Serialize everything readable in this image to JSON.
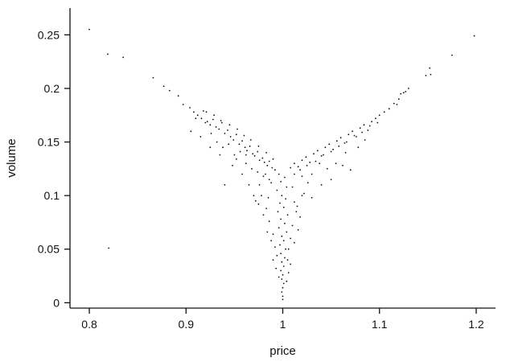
{
  "chart_data": {
    "type": "scatter",
    "title": "",
    "xlabel": "price",
    "ylabel": "volume",
    "xlim": [
      0.78,
      1.22
    ],
    "ylim": [
      -0.005,
      0.275
    ],
    "x_ticks": [
      0.8,
      0.9,
      1.0,
      1.1,
      1.2
    ],
    "x_tick_labels": [
      "0.8",
      "0.9",
      "1",
      "1.1",
      "1.2"
    ],
    "y_ticks": [
      0,
      0.05,
      0.1,
      0.15,
      0.2,
      0.25
    ],
    "y_tick_labels": [
      "0",
      "0.05",
      "0.1",
      "0.15",
      "0.2",
      "0.25"
    ],
    "grid": false,
    "legend": "none",
    "point_color": "#111111",
    "points": [
      [
        0.8,
        0.255
      ],
      [
        0.819,
        0.232
      ],
      [
        0.835,
        0.229
      ],
      [
        0.866,
        0.21
      ],
      [
        0.82,
        0.051
      ],
      [
        0.877,
        0.202
      ],
      [
        0.883,
        0.198
      ],
      [
        0.892,
        0.193
      ],
      [
        0.897,
        0.185
      ],
      [
        0.904,
        0.182
      ],
      [
        0.908,
        0.178
      ],
      [
        0.912,
        0.175
      ],
      [
        0.916,
        0.172
      ],
      [
        0.918,
        0.179
      ],
      [
        0.922,
        0.169
      ],
      [
        0.925,
        0.166
      ],
      [
        0.928,
        0.171
      ],
      [
        0.931,
        0.164
      ],
      [
        0.934,
        0.162
      ],
      [
        0.937,
        0.168
      ],
      [
        0.94,
        0.158
      ],
      [
        0.943,
        0.161
      ],
      [
        0.946,
        0.155
      ],
      [
        0.949,
        0.152
      ],
      [
        0.952,
        0.157
      ],
      [
        0.955,
        0.148
      ],
      [
        0.958,
        0.151
      ],
      [
        0.961,
        0.145
      ],
      [
        0.963,
        0.142
      ],
      [
        0.966,
        0.146
      ],
      [
        0.969,
        0.139
      ],
      [
        0.971,
        0.137
      ],
      [
        0.974,
        0.141
      ],
      [
        0.976,
        0.133
      ],
      [
        0.979,
        0.135
      ],
      [
        0.981,
        0.131
      ],
      [
        0.984,
        0.128
      ],
      [
        0.986,
        0.132
      ],
      [
        0.989,
        0.126
      ],
      [
        0.992,
        0.124
      ],
      [
        0.905,
        0.16
      ],
      [
        0.91,
        0.172
      ],
      [
        0.915,
        0.155
      ],
      [
        0.92,
        0.168
      ],
      [
        0.926,
        0.158
      ],
      [
        0.932,
        0.15
      ],
      [
        0.938,
        0.145
      ],
      [
        0.944,
        0.148
      ],
      [
        0.95,
        0.138
      ],
      [
        0.956,
        0.141
      ],
      [
        0.962,
        0.13
      ],
      [
        0.968,
        0.125
      ],
      [
        0.974,
        0.122
      ],
      [
        0.98,
        0.118
      ],
      [
        0.986,
        0.115
      ],
      [
        0.921,
        0.178
      ],
      [
        0.929,
        0.175
      ],
      [
        0.936,
        0.17
      ],
      [
        0.945,
        0.166
      ],
      [
        0.953,
        0.162
      ],
      [
        0.96,
        0.156
      ],
      [
        0.967,
        0.152
      ],
      [
        0.975,
        0.146
      ],
      [
        0.983,
        0.14
      ],
      [
        0.99,
        0.134
      ],
      [
        0.925,
        0.145
      ],
      [
        0.935,
        0.138
      ],
      [
        0.948,
        0.128
      ],
      [
        0.958,
        0.12
      ],
      [
        0.965,
        0.11
      ],
      [
        0.97,
        0.1
      ],
      [
        0.975,
        0.092
      ],
      [
        0.94,
        0.11
      ],
      [
        0.952,
        0.134
      ],
      [
        0.962,
        0.138
      ],
      [
        1.008,
        0.126
      ],
      [
        1.012,
        0.13
      ],
      [
        1.016,
        0.127
      ],
      [
        1.02,
        0.133
      ],
      [
        1.024,
        0.136
      ],
      [
        1.028,
        0.131
      ],
      [
        1.032,
        0.139
      ],
      [
        1.036,
        0.142
      ],
      [
        1.04,
        0.137
      ],
      [
        1.044,
        0.145
      ],
      [
        1.048,
        0.148
      ],
      [
        1.052,
        0.143
      ],
      [
        1.056,
        0.151
      ],
      [
        1.06,
        0.154
      ],
      [
        1.064,
        0.149
      ],
      [
        1.068,
        0.157
      ],
      [
        1.072,
        0.16
      ],
      [
        1.076,
        0.155
      ],
      [
        1.08,
        0.163
      ],
      [
        1.084,
        0.166
      ],
      [
        1.088,
        0.161
      ],
      [
        1.092,
        0.169
      ],
      [
        1.096,
        0.172
      ],
      [
        1.1,
        0.175
      ],
      [
        1.105,
        0.178
      ],
      [
        1.11,
        0.181
      ],
      [
        1.115,
        0.186
      ],
      [
        1.12,
        0.19
      ],
      [
        1.125,
        0.196
      ],
      [
        1.13,
        0.2
      ],
      [
        1.012,
        0.12
      ],
      [
        1.018,
        0.124
      ],
      [
        1.025,
        0.128
      ],
      [
        1.034,
        0.132
      ],
      [
        1.042,
        0.138
      ],
      [
        1.05,
        0.141
      ],
      [
        1.058,
        0.146
      ],
      [
        1.066,
        0.15
      ],
      [
        1.074,
        0.156
      ],
      [
        1.082,
        0.159
      ],
      [
        1.09,
        0.165
      ],
      [
        1.098,
        0.168
      ],
      [
        1.03,
        0.12
      ],
      [
        1.038,
        0.13
      ],
      [
        1.046,
        0.125
      ],
      [
        1.055,
        0.13
      ],
      [
        1.062,
        0.128
      ],
      [
        1.07,
        0.124
      ],
      [
        1.04,
        0.11
      ],
      [
        1.05,
        0.115
      ],
      [
        1.065,
        0.14
      ],
      [
        1.078,
        0.145
      ],
      [
        1.085,
        0.152
      ],
      [
        1.02,
        0.1
      ],
      [
        1.015,
        0.09
      ],
      [
        1.118,
        0.185
      ],
      [
        1.122,
        0.195
      ],
      [
        1.127,
        0.197
      ],
      [
        1.148,
        0.212
      ],
      [
        1.152,
        0.219
      ],
      [
        1.153,
        0.213
      ],
      [
        1.175,
        0.231
      ],
      [
        1.198,
        0.249
      ],
      [
        0.996,
        0.12
      ],
      [
        0.998,
        0.113
      ],
      [
        1.002,
        0.117
      ],
      [
        1.004,
        0.108
      ],
      [
        0.994,
        0.105
      ],
      [
        0.999,
        0.1
      ],
      [
        1.003,
        0.097
      ],
      [
        0.997,
        0.093
      ],
      [
        1.001,
        0.089
      ],
      [
        0.995,
        0.085
      ],
      [
        1.005,
        0.082
      ],
      [
        0.998,
        0.078
      ],
      [
        1.002,
        0.074
      ],
      [
        0.996,
        0.07
      ],
      [
        1.004,
        0.066
      ],
      [
        0.999,
        0.062
      ],
      [
        1.001,
        0.058
      ],
      [
        0.997,
        0.054
      ],
      [
        1.003,
        0.05
      ],
      [
        0.998,
        0.046
      ],
      [
        1.002,
        0.042
      ],
      [
        0.999,
        0.038
      ],
      [
        1.001,
        0.034
      ],
      [
        0.998,
        0.03
      ],
      [
        1.0,
        0.026
      ],
      [
        0.999,
        0.022
      ],
      [
        1.001,
        0.018
      ],
      [
        1.0,
        0.014
      ],
      [
        0.999,
        0.01
      ],
      [
        1.0,
        0.006
      ],
      [
        1.0,
        0.003
      ],
      [
        0.988,
        0.112
      ],
      [
        1.01,
        0.108
      ],
      [
        0.985,
        0.098
      ],
      [
        1.012,
        0.094
      ],
      [
        0.983,
        0.088
      ],
      [
        1.014,
        0.085
      ],
      [
        0.986,
        0.076
      ],
      [
        1.01,
        0.072
      ],
      [
        0.99,
        0.064
      ],
      [
        1.008,
        0.06
      ],
      [
        0.992,
        0.052
      ],
      [
        1.006,
        0.05
      ],
      [
        0.994,
        0.044
      ],
      [
        1.005,
        0.04
      ],
      [
        0.978,
        0.1
      ],
      [
        1.022,
        0.102
      ],
      [
        0.98,
        0.082
      ],
      [
        1.018,
        0.08
      ],
      [
        0.984,
        0.066
      ],
      [
        1.016,
        0.068
      ],
      [
        0.988,
        0.058
      ],
      [
        1.012,
        0.056
      ],
      [
        0.99,
        0.04
      ],
      [
        1.008,
        0.036
      ],
      [
        0.993,
        0.032
      ],
      [
        1.006,
        0.028
      ],
      [
        0.996,
        0.024
      ],
      [
        1.004,
        0.02
      ],
      [
        0.976,
        0.11
      ],
      [
        1.026,
        0.112
      ],
      [
        0.972,
        0.095
      ],
      [
        1.03,
        0.098
      ],
      [
        0.982,
        0.12
      ],
      [
        1.02,
        0.118
      ]
    ]
  }
}
